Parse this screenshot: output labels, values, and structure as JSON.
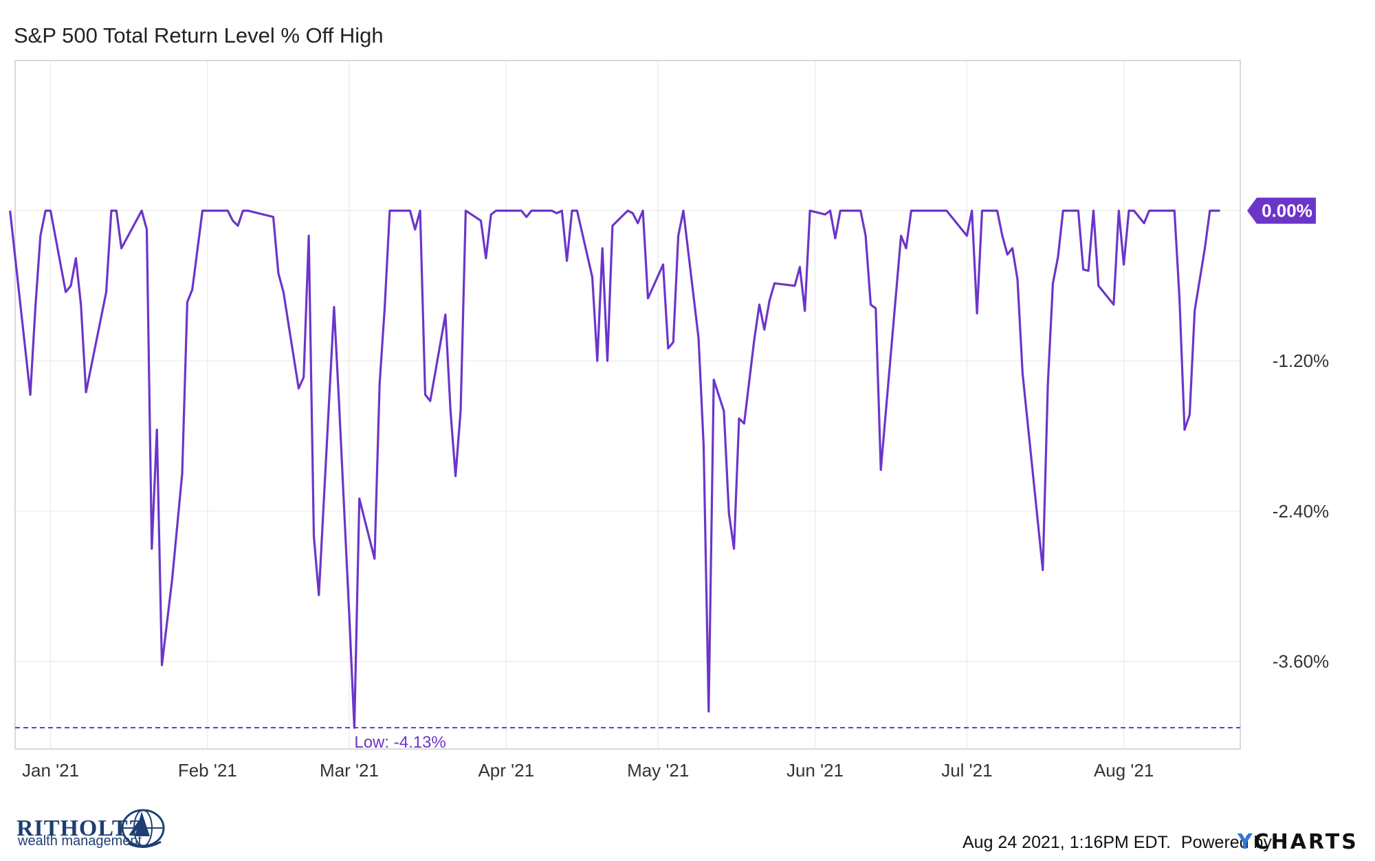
{
  "title": "S&P 500 Total Return Level % Off High",
  "colors": {
    "series": "#6c35c9",
    "grid": "#e6e6e6",
    "axis": "#cccccc",
    "badge": "#6c35c9",
    "logo": "#1d3f73",
    "ycharts_accent": "#2e7bd6"
  },
  "footer": {
    "timestamp": "Aug 24 2021, 1:16PM EDT.",
    "powered_by": "Powered by",
    "brand_y": "Y",
    "brand_rest": "CHARTS"
  },
  "logo": {
    "name": "RITHOLTZ",
    "subtitle": "wealth management",
    "icon": "globe-sailboat-logo-icon"
  },
  "chart_data": {
    "type": "line",
    "title": "S&P 500 Total Return Level % Off High",
    "xlabel": "",
    "ylabel": "",
    "x_tick_labels": [
      "Jan '21",
      "Feb '21",
      "Mar '21",
      "Apr '21",
      "May '21",
      "Jun '21",
      "Jul '21",
      "Aug '21"
    ],
    "x_tick_dates": [
      "2021-01-01",
      "2021-02-01",
      "2021-03-01",
      "2021-04-01",
      "2021-05-01",
      "2021-06-01",
      "2021-07-01",
      "2021-08-01"
    ],
    "x_range": [
      "2020-12-25",
      "2021-08-24"
    ],
    "y_tick_labels": [
      "0.00%",
      "-1.20%",
      "-2.40%",
      "-3.60%"
    ],
    "y_ticks": [
      0,
      -1.2,
      -2.4,
      -3.6
    ],
    "ylim": [
      -4.3,
      1.2
    ],
    "grid": true,
    "current_value_label": "0.00%",
    "low_label": "Low: -4.13%",
    "low_value": -4.13,
    "series": [
      {
        "values": [
          [
            "2020-12-24",
            0.0
          ],
          [
            "2020-12-28",
            -1.47
          ],
          [
            "2020-12-29",
            -0.77
          ],
          [
            "2020-12-30",
            -0.2
          ],
          [
            "2020-12-31",
            0.0
          ],
          [
            "2021-01-01",
            0.0
          ],
          [
            "2021-01-04",
            -0.65
          ],
          [
            "2021-01-05",
            -0.6
          ],
          [
            "2021-01-06",
            -0.38
          ],
          [
            "2021-01-07",
            -0.75
          ],
          [
            "2021-01-08",
            -1.45
          ],
          [
            "2021-01-12",
            -0.65
          ],
          [
            "2021-01-13",
            0.0
          ],
          [
            "2021-01-14",
            0.0
          ],
          [
            "2021-01-15",
            -0.3
          ],
          [
            "2021-01-19",
            0.0
          ],
          [
            "2021-01-20",
            -0.15
          ],
          [
            "2021-01-21",
            -2.7
          ],
          [
            "2021-01-22",
            -1.75
          ],
          [
            "2021-01-23",
            -3.63
          ],
          [
            "2021-01-25",
            -2.95
          ],
          [
            "2021-01-27",
            -2.1
          ],
          [
            "2021-01-28",
            -0.73
          ],
          [
            "2021-01-29",
            -0.63
          ],
          [
            "2021-01-31",
            0.0
          ],
          [
            "2021-02-04",
            0.0
          ],
          [
            "2021-02-05",
            0.0
          ],
          [
            "2021-02-06",
            -0.08
          ],
          [
            "2021-02-07",
            -0.12
          ],
          [
            "2021-02-08",
            0.0
          ],
          [
            "2021-02-09",
            0.0
          ],
          [
            "2021-02-14",
            -0.05
          ],
          [
            "2021-02-15",
            -0.5
          ],
          [
            "2021-02-16",
            -0.65
          ],
          [
            "2021-02-19",
            -1.42
          ],
          [
            "2021-02-20",
            -1.33
          ],
          [
            "2021-02-21",
            -0.2
          ],
          [
            "2021-02-22",
            -2.6
          ],
          [
            "2021-02-23",
            -3.07
          ],
          [
            "2021-02-26",
            -0.77
          ],
          [
            "2021-02-27",
            -1.55
          ],
          [
            "2021-03-01",
            -3.23
          ],
          [
            "2021-03-02",
            -4.13
          ],
          [
            "2021-03-03",
            -2.3
          ],
          [
            "2021-03-06",
            -2.78
          ],
          [
            "2021-03-07",
            -1.38
          ],
          [
            "2021-03-08",
            -0.78
          ],
          [
            "2021-03-09",
            0.0
          ],
          [
            "2021-03-13",
            0.0
          ],
          [
            "2021-03-14",
            -0.15
          ],
          [
            "2021-03-15",
            0.0
          ],
          [
            "2021-03-16",
            -1.47
          ],
          [
            "2021-03-17",
            -1.52
          ],
          [
            "2021-03-20",
            -0.83
          ],
          [
            "2021-03-21",
            -1.6
          ],
          [
            "2021-03-22",
            -2.12
          ],
          [
            "2021-03-23",
            -1.6
          ],
          [
            "2021-03-24",
            0.0
          ],
          [
            "2021-03-27",
            -0.08
          ],
          [
            "2021-03-28",
            -0.38
          ],
          [
            "2021-03-29",
            -0.03
          ],
          [
            "2021-03-30",
            0.0
          ],
          [
            "2021-04-04",
            0.0
          ],
          [
            "2021-04-05",
            -0.05
          ],
          [
            "2021-04-06",
            0.0
          ],
          [
            "2021-04-10",
            0.0
          ],
          [
            "2021-04-11",
            -0.02
          ],
          [
            "2021-04-12",
            0.0
          ],
          [
            "2021-04-13",
            -0.4
          ],
          [
            "2021-04-14",
            0.0
          ],
          [
            "2021-04-15",
            0.0
          ],
          [
            "2021-04-18",
            -0.53
          ],
          [
            "2021-04-19",
            -1.2
          ],
          [
            "2021-04-20",
            -0.3
          ],
          [
            "2021-04-21",
            -1.2
          ],
          [
            "2021-04-22",
            -0.12
          ],
          [
            "2021-04-25",
            0.0
          ],
          [
            "2021-04-26",
            -0.02
          ],
          [
            "2021-04-27",
            -0.1
          ],
          [
            "2021-04-28",
            0.0
          ],
          [
            "2021-04-29",
            -0.7
          ],
          [
            "2021-05-02",
            -0.43
          ],
          [
            "2021-05-03",
            -1.1
          ],
          [
            "2021-05-04",
            -1.05
          ],
          [
            "2021-05-05",
            -0.2
          ],
          [
            "2021-05-06",
            0.0
          ],
          [
            "2021-05-09",
            -1.02
          ],
          [
            "2021-05-10",
            -1.88
          ],
          [
            "2021-05-11",
            -4.0
          ],
          [
            "2021-05-12",
            -1.35
          ],
          [
            "2021-05-14",
            -1.6
          ],
          [
            "2021-05-15",
            -2.42
          ],
          [
            "2021-05-16",
            -2.7
          ],
          [
            "2021-05-17",
            -1.66
          ],
          [
            "2021-05-18",
            -1.7
          ],
          [
            "2021-05-20",
            -1.03
          ],
          [
            "2021-05-21",
            -0.75
          ],
          [
            "2021-05-22",
            -0.95
          ],
          [
            "2021-05-23",
            -0.72
          ],
          [
            "2021-05-24",
            -0.58
          ],
          [
            "2021-05-28",
            -0.6
          ],
          [
            "2021-05-29",
            -0.45
          ],
          [
            "2021-05-30",
            -0.8
          ],
          [
            "2021-05-31",
            0.0
          ],
          [
            "2021-06-03",
            -0.03
          ],
          [
            "2021-06-04",
            0.0
          ],
          [
            "2021-06-05",
            -0.22
          ],
          [
            "2021-06-06",
            0.0
          ],
          [
            "2021-06-10",
            0.0
          ],
          [
            "2021-06-11",
            -0.2
          ],
          [
            "2021-06-12",
            -0.75
          ],
          [
            "2021-06-13",
            -0.78
          ],
          [
            "2021-06-14",
            -2.07
          ],
          [
            "2021-06-18",
            -0.2
          ],
          [
            "2021-06-19",
            -0.3
          ],
          [
            "2021-06-20",
            0.0
          ],
          [
            "2021-06-21",
            0.0
          ],
          [
            "2021-06-26",
            0.0
          ],
          [
            "2021-06-27",
            0.0
          ],
          [
            "2021-07-01",
            -0.2
          ],
          [
            "2021-07-02",
            0.0
          ],
          [
            "2021-07-03",
            -0.82
          ],
          [
            "2021-07-04",
            0.0
          ],
          [
            "2021-07-07",
            0.0
          ],
          [
            "2021-07-08",
            -0.2
          ],
          [
            "2021-07-09",
            -0.35
          ],
          [
            "2021-07-10",
            -0.3
          ],
          [
            "2021-07-11",
            -0.55
          ],
          [
            "2021-07-12",
            -1.3
          ],
          [
            "2021-07-16",
            -2.87
          ],
          [
            "2021-07-17",
            -1.38
          ],
          [
            "2021-07-18",
            -0.58
          ],
          [
            "2021-07-19",
            -0.37
          ],
          [
            "2021-07-20",
            0.0
          ],
          [
            "2021-07-23",
            0.0
          ],
          [
            "2021-07-24",
            -0.47
          ],
          [
            "2021-07-25",
            -0.48
          ],
          [
            "2021-07-26",
            0.0
          ],
          [
            "2021-07-27",
            -0.6
          ],
          [
            "2021-07-29",
            -0.7
          ],
          [
            "2021-07-30",
            -0.75
          ],
          [
            "2021-07-31",
            0.0
          ],
          [
            "2021-08-01",
            -0.43
          ],
          [
            "2021-08-02",
            0.0
          ],
          [
            "2021-08-03",
            0.0
          ],
          [
            "2021-08-05",
            -0.1
          ],
          [
            "2021-08-06",
            0.0
          ],
          [
            "2021-08-11",
            0.0
          ],
          [
            "2021-08-12",
            -0.7
          ],
          [
            "2021-08-13",
            -1.75
          ],
          [
            "2021-08-14",
            -1.63
          ],
          [
            "2021-08-15",
            -0.8
          ],
          [
            "2021-08-16",
            -0.55
          ],
          [
            "2021-08-17",
            -0.3
          ],
          [
            "2021-08-18",
            0.0
          ],
          [
            "2021-08-20",
            0.0
          ]
        ]
      }
    ]
  }
}
